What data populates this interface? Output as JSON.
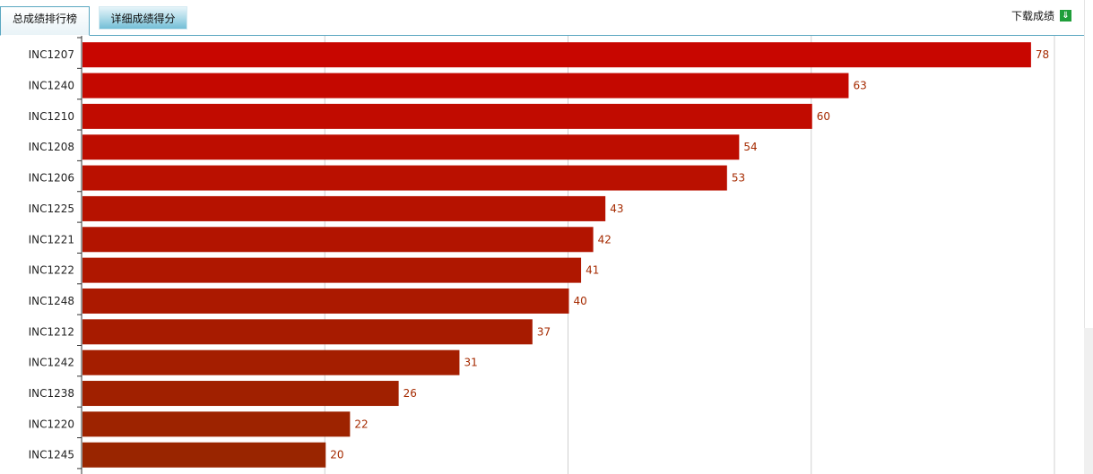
{
  "tabs": [
    {
      "label": "总成绩排行榜",
      "active": true
    },
    {
      "label": "详细成绩得分",
      "active": false
    }
  ],
  "download": {
    "label": "下载成绩",
    "icon": "download-icon"
  },
  "colors": {
    "bar_top": "#c80600",
    "bar_bottom": "#992500",
    "value_label": "#a52a00",
    "tab_border": "#5aa7c1"
  },
  "chart_data": {
    "type": "bar",
    "orientation": "horizontal",
    "categories": [
      "INC1207",
      "INC1240",
      "INC1210",
      "INC1208",
      "INC1206",
      "INC1225",
      "INC1221",
      "INC1222",
      "INC1248",
      "INC1212",
      "INC1242",
      "INC1238",
      "INC1220",
      "INC1245"
    ],
    "values": [
      78,
      63,
      60,
      54,
      53,
      43,
      42,
      41,
      40,
      37,
      31,
      26,
      22,
      20
    ],
    "xlim": [
      0,
      80
    ],
    "grid": true,
    "data_labels": true
  }
}
